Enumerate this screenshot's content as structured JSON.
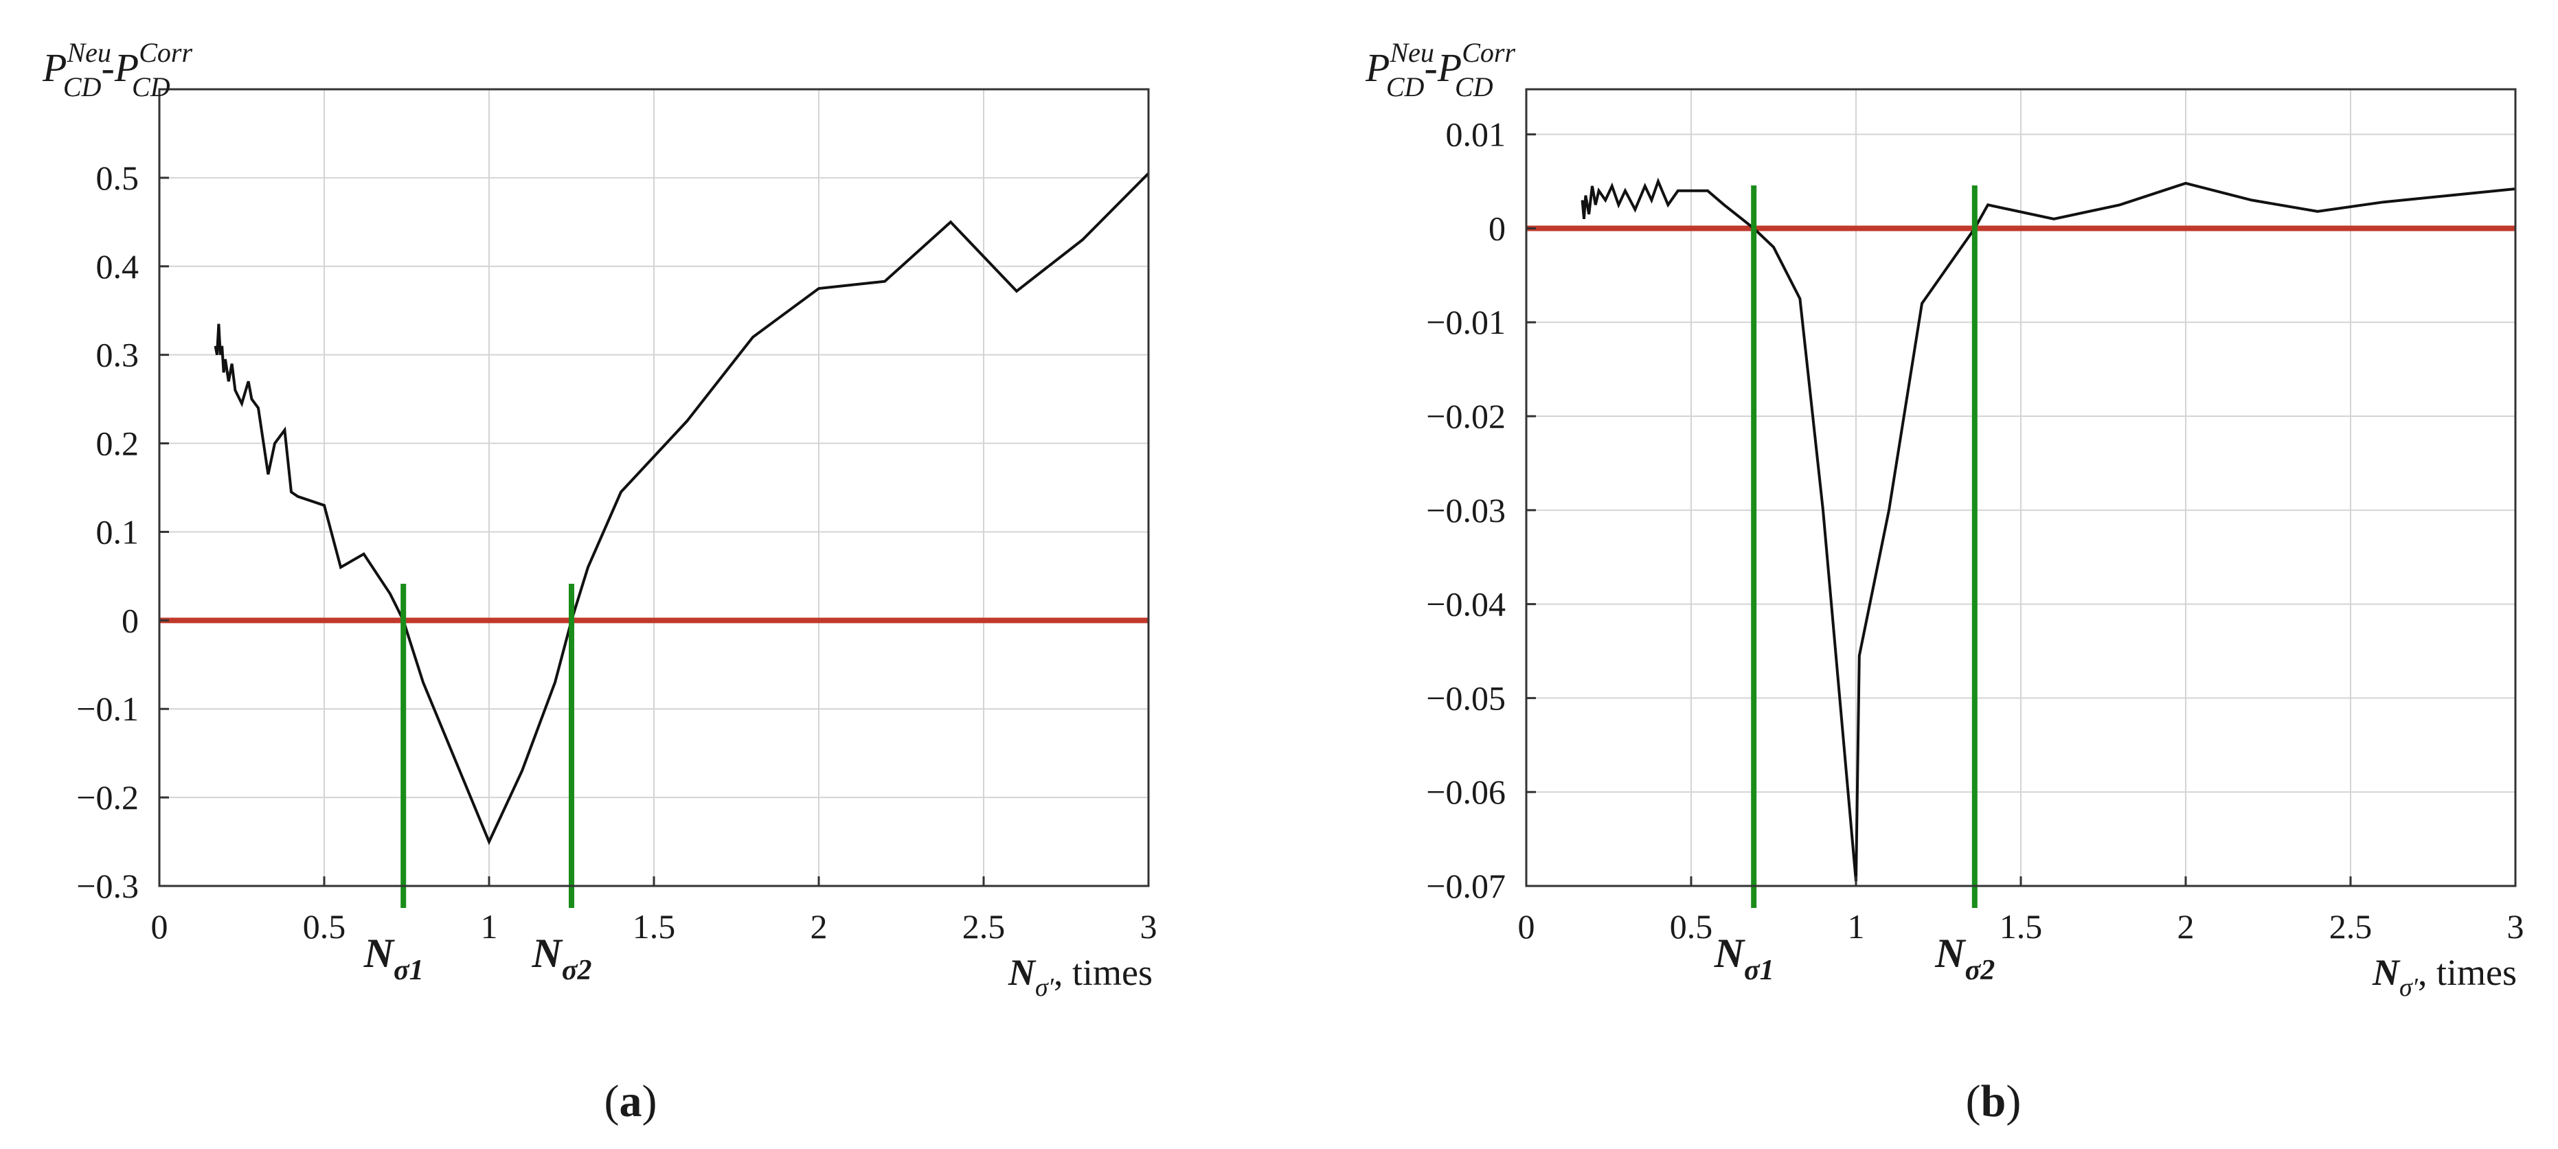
{
  "chart_data": [
    {
      "id": "a",
      "type": "line",
      "caption": "a",
      "ylabel": "P_CD^Neu - P_CD^Corr",
      "xlabel": "N_σ', times",
      "xlim": [
        0,
        3
      ],
      "ylim": [
        -0.3,
        0.6
      ],
      "xticks": [
        0,
        0.5,
        1,
        1.5,
        2,
        2.5,
        3
      ],
      "xtick_labels": [
        "0",
        "0.5",
        "1",
        "1.5",
        "2",
        "2.5",
        "3"
      ],
      "yticks": [
        -0.3,
        -0.2,
        -0.1,
        0,
        0.1,
        0.2,
        0.3,
        0.4,
        0.5
      ],
      "ytick_labels": [
        "−0.3",
        "−0.2",
        "−0.1",
        "0",
        "0.1",
        "0.2",
        "0.3",
        "0.4",
        "0.5"
      ],
      "grid": true,
      "zero_line": {
        "y": 0,
        "color": "#c0392b"
      },
      "markers": [
        {
          "name": "N_σ1",
          "x": 0.74,
          "label_main": "N",
          "label_sub": "σ1",
          "color": "#1a8c1a"
        },
        {
          "name": "N_σ2",
          "x": 1.25,
          "label_main": "N",
          "label_sub": "σ2",
          "color": "#1a8c1a"
        }
      ],
      "series": [
        {
          "color": "#111111",
          "x": [
            0.17,
            0.175,
            0.18,
            0.185,
            0.19,
            0.195,
            0.2,
            0.21,
            0.22,
            0.23,
            0.25,
            0.27,
            0.28,
            0.3,
            0.33,
            0.35,
            0.38,
            0.4,
            0.42,
            0.5,
            0.55,
            0.62,
            0.7,
            0.74,
            0.8,
            0.9,
            1.0,
            1.1,
            1.2,
            1.25,
            1.3,
            1.4,
            1.6,
            1.8,
            2.0,
            2.2,
            2.4,
            2.6,
            2.8,
            3.0
          ],
          "y": [
            0.31,
            0.3,
            0.335,
            0.3,
            0.31,
            0.28,
            0.295,
            0.27,
            0.29,
            0.26,
            0.245,
            0.27,
            0.25,
            0.24,
            0.165,
            0.2,
            0.215,
            0.145,
            0.14,
            0.13,
            0.06,
            0.075,
            0.03,
            0.0,
            -0.07,
            -0.16,
            -0.25,
            -0.17,
            -0.07,
            0.0,
            0.06,
            0.145,
            0.225,
            0.32,
            0.375,
            0.383,
            0.45,
            0.372,
            0.43,
            0.505
          ]
        }
      ]
    },
    {
      "id": "b",
      "type": "line",
      "caption": "b",
      "ylabel": "P_CD^Neu - P_CD^Corr",
      "xlabel": "N_σ', times",
      "xlim": [
        0,
        3
      ],
      "ylim": [
        -0.07,
        0.01
      ],
      "xticks": [
        0,
        0.5,
        1,
        1.5,
        2,
        2.5,
        3
      ],
      "xtick_labels": [
        "0",
        "0.5",
        "1",
        "1.5",
        "2",
        "2.5",
        "3"
      ],
      "yticks": [
        -0.07,
        -0.06,
        -0.05,
        -0.04,
        -0.03,
        -0.02,
        -0.01,
        0,
        0.01
      ],
      "ytick_labels": [
        "−0.07",
        "−0.06",
        "−0.05",
        "−0.04",
        "−0.03",
        "−0.02",
        "−0.01",
        "0",
        "0.01"
      ],
      "grid": true,
      "zero_line": {
        "y": 0,
        "color": "#c0392b"
      },
      "markers": [
        {
          "name": "N_σ1",
          "x": 0.69,
          "label_main": "N",
          "label_sub": "σ1",
          "color": "#1a8c1a"
        },
        {
          "name": "N_σ2",
          "x": 1.36,
          "label_main": "N",
          "label_sub": "σ2",
          "color": "#1a8c1a"
        }
      ],
      "series": [
        {
          "color": "#111111",
          "x": [
            0.17,
            0.175,
            0.18,
            0.19,
            0.2,
            0.21,
            0.22,
            0.24,
            0.26,
            0.28,
            0.3,
            0.33,
            0.36,
            0.38,
            0.4,
            0.43,
            0.46,
            0.5,
            0.55,
            0.6,
            0.69,
            0.75,
            0.83,
            0.9,
            1.0,
            1.01,
            1.1,
            1.2,
            1.3,
            1.36,
            1.4,
            1.6,
            1.8,
            2.0,
            2.2,
            2.4,
            2.6,
            2.8,
            3.0
          ],
          "y": [
            0.003,
            0.001,
            0.0035,
            0.0015,
            0.0045,
            0.0025,
            0.004,
            0.003,
            0.0045,
            0.0025,
            0.004,
            0.002,
            0.0045,
            0.003,
            0.005,
            0.0025,
            0.004,
            0.004,
            0.004,
            0.0025,
            0.0,
            -0.002,
            -0.0075,
            -0.03,
            -0.0695,
            -0.0455,
            -0.03,
            -0.008,
            -0.003,
            0.0,
            0.0025,
            0.001,
            0.0025,
            0.0048,
            0.003,
            0.0018,
            0.0028,
            0.0035,
            0.0042
          ]
        }
      ]
    }
  ]
}
